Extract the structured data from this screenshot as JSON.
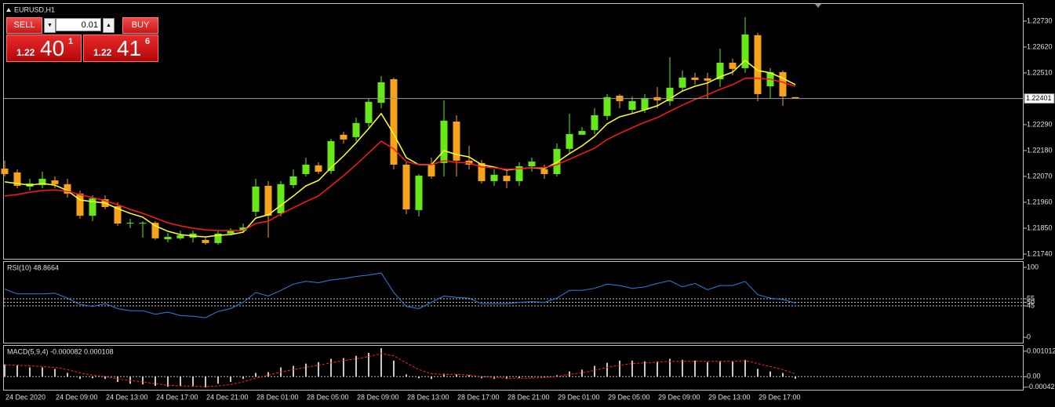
{
  "chart_data": [
    {
      "type": "candlestick",
      "title": "EURUSD,H1",
      "categories": [
        "24 Dec 2020",
        null,
        null,
        null,
        "24 Dec 09:00",
        null,
        null,
        null,
        "24 Dec 13:00",
        null,
        null,
        null,
        "24 Dec 17:00",
        null,
        null,
        null,
        "24 Dec 21:00",
        null,
        null,
        null,
        "28 Dec 01:00",
        null,
        null,
        null,
        "28 Dec 05:00",
        null,
        null,
        null,
        "28 Dec 09:00",
        null,
        null,
        null,
        "28 Dec 13:00",
        null,
        null,
        null,
        "28 Dec 17:00",
        null,
        null,
        null,
        "28 Dec 21:00",
        null,
        null,
        null,
        "29 Dec 01:00",
        null,
        null,
        null,
        "29 Dec 05:00",
        null,
        null,
        null,
        "29 Dec 09:00",
        null,
        null,
        null,
        "29 Dec 13:00",
        null,
        null,
        null,
        "29 Dec 17:00",
        null,
        null,
        null
      ],
      "open": [
        1.22103,
        1.22087,
        1.22027,
        1.22033,
        1.22053,
        1.22037,
        1.21997,
        1.21903,
        1.21973,
        1.21943,
        1.2187,
        1.2187,
        1.21873,
        1.21803,
        1.21807,
        1.2181,
        1.218,
        1.21787,
        1.21827,
        1.2184,
        1.2192,
        1.2203,
        1.21913,
        1.22033,
        1.2208,
        1.22117,
        1.22093,
        1.22247,
        1.22237,
        1.22297,
        1.22383,
        1.22483,
        1.2212,
        1.21927,
        1.2212,
        1.22127,
        1.22303,
        1.22137,
        1.22127,
        1.2205,
        1.22073,
        1.2205,
        1.22113,
        1.221,
        1.2208,
        1.22187,
        1.22247,
        1.22267,
        1.22327,
        1.22413,
        1.22353,
        1.22353,
        1.22407,
        1.2239,
        1.22447,
        1.2249,
        1.22487,
        1.22483,
        1.22553,
        1.2253,
        1.2267,
        1.22453,
        1.22513,
        1.22407
      ],
      "high": [
        1.22137,
        1.221,
        1.2206,
        1.2209,
        1.2207,
        1.2206,
        1.2201,
        1.2199,
        1.2199,
        1.2196,
        1.2189,
        1.2188,
        1.2188,
        1.2183,
        1.2184,
        1.2184,
        1.2181,
        1.2184,
        1.2185,
        1.2187,
        1.2206,
        1.2205,
        1.2205,
        1.221,
        1.2215,
        1.2213,
        1.2223,
        1.2226,
        1.2232,
        1.224,
        1.22497,
        1.2249,
        1.2213,
        1.2208,
        1.2215,
        1.22393,
        1.2233,
        1.222,
        1.2214,
        1.221,
        1.221,
        1.2213,
        1.2215,
        1.2212,
        1.2221,
        1.22337,
        1.2228,
        1.2236,
        1.2242,
        1.2242,
        1.2241,
        1.2242,
        1.2245,
        1.22577,
        1.2252,
        1.2251,
        1.2251,
        1.22613,
        1.2257,
        1.22747,
        1.2268,
        1.2253,
        1.2252,
        1.22407
      ],
      "low": [
        1.2207,
        1.2202,
        1.2201,
        1.2202,
        1.2202,
        1.2198,
        1.2189,
        1.2188,
        1.2193,
        1.2186,
        1.2185,
        1.2181,
        1.218,
        1.2179,
        1.218,
        1.2179,
        1.2178,
        1.2178,
        1.2182,
        1.2183,
        1.219,
        1.2181,
        1.219,
        1.2202,
        1.2207,
        1.2208,
        1.2208,
        1.2221,
        1.2222,
        1.2228,
        1.2236,
        1.221,
        1.2191,
        1.219,
        1.2206,
        1.2207,
        1.2207,
        1.221,
        1.2204,
        1.2203,
        1.2202,
        1.2203,
        1.2209,
        1.2206,
        1.2207,
        1.2217,
        1.2225,
        1.2225,
        1.2231,
        1.2236,
        1.2234,
        1.2234,
        1.2236,
        1.2237,
        1.2243,
        1.2246,
        1.224,
        1.2245,
        1.225,
        1.2251,
        1.2239,
        1.224,
        1.2237,
        1.224
      ],
      "close": [
        1.2208,
        1.2203,
        1.2204,
        1.2206,
        1.22037,
        1.21997,
        1.21903,
        1.21977,
        1.2194,
        1.2187,
        1.21873,
        1.21873,
        1.21807,
        1.21813,
        1.2182,
        1.21827,
        1.21787,
        1.21827,
        1.2184,
        1.21853,
        1.22027,
        1.21903,
        1.22037,
        1.2207,
        1.2212,
        1.2209,
        1.2222,
        1.22227,
        1.22297,
        1.22387,
        1.2247,
        1.2212,
        1.2193,
        1.22073,
        1.2207,
        1.22307,
        1.22137,
        1.2212,
        1.2205,
        1.22077,
        1.2205,
        1.22113,
        1.22133,
        1.2208,
        1.22187,
        1.2225,
        1.22263,
        1.2233,
        1.22407,
        1.2239,
        1.2239,
        1.22403,
        1.22393,
        1.22447,
        1.2249,
        1.2248,
        1.22477,
        1.22553,
        1.22527,
        1.22673,
        1.2242,
        1.22513,
        1.2241,
        1.22401
      ],
      "up_color": "#66e81a",
      "down_color": "#f7a21b",
      "series": [
        {
          "color": "#ffff33",
          "values": [
            1.22047,
            1.2204,
            1.22033,
            1.2204,
            1.22033,
            1.2201,
            1.2197,
            1.21963,
            1.21957,
            1.21933,
            1.21913,
            1.21897,
            1.2186,
            1.21837,
            1.21823,
            1.21817,
            1.21813,
            1.2182,
            1.21823,
            1.21833,
            1.21893,
            1.21907,
            1.21947,
            1.21987,
            1.2203,
            1.22053,
            1.22107,
            1.22157,
            1.22213,
            1.22273,
            1.22337,
            1.2225,
            1.2215,
            1.2212,
            1.2212,
            1.2218,
            1.22163,
            1.22153,
            1.2212,
            1.2211,
            1.22097,
            1.22103,
            1.22107,
            1.22103,
            1.2213,
            1.22167,
            1.222,
            1.2224,
            1.22293,
            1.22323,
            1.22337,
            1.22353,
            1.2237,
            1.224,
            1.22433,
            1.22453,
            1.22467,
            1.22493,
            1.22513,
            1.22563,
            1.2252,
            1.2251,
            1.22487,
            1.2246
          ]
        },
        {
          "color": "#ff1a1a",
          "values": [
            1.21987,
            1.21993,
            1.22003,
            1.2201,
            1.22013,
            1.22007,
            1.21993,
            1.2198,
            1.21967,
            1.2195,
            1.2193,
            1.21913,
            1.21893,
            1.21873,
            1.2186,
            1.2185,
            1.21843,
            1.2184,
            1.2184,
            1.2184,
            1.2187,
            1.2188,
            1.2191,
            1.21937,
            1.21963,
            1.21987,
            1.2203,
            1.22073,
            1.2212,
            1.2217,
            1.2222,
            1.22187,
            1.22133,
            1.2212,
            1.2212,
            1.22137,
            1.2213,
            1.22127,
            1.2211,
            1.22107,
            1.221,
            1.22103,
            1.22107,
            1.22107,
            1.2212,
            1.22143,
            1.22167,
            1.2219,
            1.22227,
            1.22253,
            1.22277,
            1.223,
            1.2232,
            1.22347,
            1.22373,
            1.22397,
            1.22417,
            1.2244,
            1.2246,
            1.22487,
            1.22487,
            1.22483,
            1.2247,
            1.22453
          ]
        }
      ],
      "last_price": 1.22401,
      "ylim": [
        1.2172,
        1.22803
      ],
      "yticks": [
        {
          "value": 1.2273,
          "label": "1.22730"
        },
        {
          "value": 1.2262,
          "label": "1.22620"
        },
        {
          "value": 1.2251,
          "label": "1.22510"
        },
        {
          "value": 1.2229,
          "label": "1.22290"
        },
        {
          "value": 1.2218,
          "label": "1.22180"
        },
        {
          "value": 1.2207,
          "label": "1.22070"
        },
        {
          "value": 1.2196,
          "label": "1.21960"
        },
        {
          "value": 1.2185,
          "label": "1.21850"
        },
        {
          "value": 1.2174,
          "label": "1.21740"
        }
      ]
    },
    {
      "type": "line",
      "title": "RSI(10) 48.8664",
      "color": "#2f7fe0",
      "values": [
        69,
        62,
        62,
        62,
        63,
        56,
        47,
        44,
        48,
        41,
        38,
        38,
        33,
        36,
        31,
        30,
        28,
        37,
        41,
        50,
        64,
        59,
        67,
        76,
        80,
        78,
        82,
        84,
        87,
        89,
        92,
        64,
        44,
        41,
        50,
        59,
        57,
        56,
        48,
        48,
        48,
        50,
        51,
        50,
        56,
        67,
        67,
        70,
        76,
        74,
        70,
        72,
        77,
        81,
        72,
        77,
        68,
        74,
        74,
        80,
        61,
        56,
        54,
        48.8664
      ],
      "ylim": [
        -7.78,
        107.78
      ],
      "yticks": [
        100,
        0
      ],
      "levels": [
        55,
        50,
        45
      ]
    },
    {
      "type": "bar",
      "title": "MACD(5,9,4) -0.000082 0.000108",
      "color": "#c8c8c8",
      "values": [
        0.00049,
        0.00046,
        0.00037,
        0.00037,
        0.00031,
        0.00015,
        -9e-05,
        -6e-05,
        -9e-05,
        -0.00021,
        -0.00028,
        -0.00031,
        -0.00037,
        -0.0004,
        -0.00037,
        -0.0004,
        -0.00043,
        -0.00028,
        -0.00021,
        -9e-05,
        0.00015,
        0.00018,
        0.00037,
        0.00043,
        0.00052,
        0.00058,
        0.00071,
        0.00074,
        0.00083,
        0.00095,
        0.00113,
        0.00064,
        9e-05,
        -6e-05,
        -9e-05,
        0.00012,
        9e-05,
        6e-05,
        -6e-05,
        -9e-05,
        -9e-05,
        -6e-05,
        -3e-05,
        -3e-05,
        6e-05,
        0.00021,
        0.00028,
        0.00043,
        0.00055,
        0.00064,
        0.00064,
        0.00061,
        0.00061,
        0.00071,
        0.00067,
        0.00064,
        0.00058,
        0.00061,
        0.00061,
        0.00067,
        0.00031,
        0.00021,
        0.00015,
        -8.2e-05
      ],
      "line_color": "#ff2020",
      "line_values": [
        0.00046,
        0.00046,
        0.00043,
        0.0004,
        0.00037,
        0.00028,
        0.00015,
        6e-05,
        0,
        -9e-05,
        -0.00015,
        -0.00021,
        -0.00028,
        -0.00034,
        -0.00037,
        -0.00037,
        -0.0004,
        -0.00037,
        -0.00031,
        -0.00021,
        -6e-05,
        6e-05,
        0.00018,
        0.00028,
        0.00037,
        0.00046,
        0.00055,
        0.00064,
        0.00071,
        0.0008,
        0.00092,
        0.00083,
        0.00055,
        0.00028,
        0.00012,
        9e-05,
        9e-05,
        6e-05,
        0,
        -3e-05,
        -6e-05,
        -6e-05,
        -6e-05,
        -3e-05,
        0,
        9e-05,
        0.00015,
        0.00025,
        0.00037,
        0.00046,
        0.00052,
        0.00055,
        0.00058,
        0.00061,
        0.00061,
        0.00061,
        0.00061,
        0.00061,
        0.00061,
        0.00064,
        0.00052,
        0.0004,
        0.00028,
        0.000108
      ],
      "ylim": [
        -0.000521,
        0.001227
      ],
      "yticks": [
        0.001012,
        -0.00042
      ],
      "levels": [
        {
          "value": 0,
          "label": "0.00"
        }
      ]
    }
  ],
  "trade_panel": {
    "sell": "SELL",
    "buy": "BUY",
    "lot": "0.01",
    "sell_price": {
      "prefix": "1.22",
      "big": "40",
      "sup": "1"
    },
    "buy_price": {
      "prefix": "1.22",
      "big": "41",
      "sup": "6"
    }
  }
}
